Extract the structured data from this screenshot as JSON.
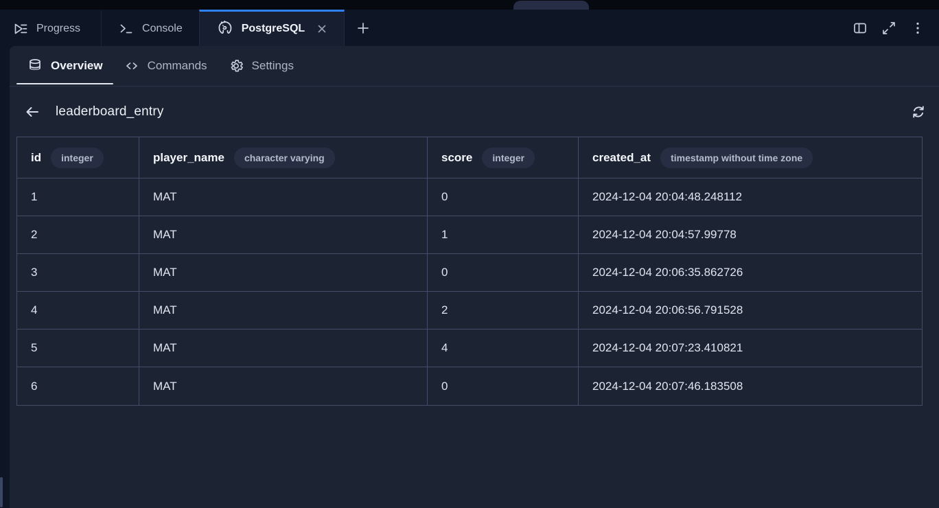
{
  "window": {
    "top_notch": true
  },
  "tabbar": {
    "tabs": [
      {
        "label": "Progress",
        "icon": "progress-icon",
        "active": false
      },
      {
        "label": "Console",
        "icon": "console-icon",
        "active": false
      },
      {
        "label": "PostgreSQL",
        "icon": "postgresql-icon",
        "active": true,
        "closable": true
      }
    ],
    "close_label": "×",
    "new_tab_label": "+",
    "right_icons": [
      "split-view-icon",
      "expand-icon",
      "kebab-menu-icon"
    ]
  },
  "pane_tabs": [
    {
      "label": "Overview",
      "icon": "database-icon",
      "active": true
    },
    {
      "label": "Commands",
      "icon": "code-icon",
      "active": false
    },
    {
      "label": "Settings",
      "icon": "gear-icon",
      "active": false
    }
  ],
  "toolbar": {
    "back_icon": "back-arrow-icon",
    "title": "leaderboard_entry",
    "refresh_icon": "refresh-icon"
  },
  "table": {
    "columns": [
      {
        "name": "id",
        "type": "integer"
      },
      {
        "name": "player_name",
        "type": "character varying"
      },
      {
        "name": "score",
        "type": "integer"
      },
      {
        "name": "created_at",
        "type": "timestamp without time zone"
      }
    ],
    "rows": [
      [
        "1",
        "MAT",
        "0",
        "2024-12-04 20:04:48.248112"
      ],
      [
        "2",
        "MAT",
        "1",
        "2024-12-04 20:04:57.99778"
      ],
      [
        "3",
        "MAT",
        "0",
        "2024-12-04 20:06:35.862726"
      ],
      [
        "4",
        "MAT",
        "2",
        "2024-12-04 20:06:56.791528"
      ],
      [
        "5",
        "MAT",
        "4",
        "2024-12-04 20:07:23.410821"
      ],
      [
        "6",
        "MAT",
        "0",
        "2024-12-04 20:07:46.183508"
      ]
    ]
  },
  "colors": {
    "root_bg": "#0E1525",
    "strip_bg": "#060910",
    "pane_bg": "#1C2333",
    "active_tab_bg": "#161E2F",
    "accent_blue": "#2F81F7",
    "table_border": "#434D66",
    "pill_bg": "#272E44",
    "text_primary": "#F0F4FA",
    "text_secondary": "#B4BCCC"
  }
}
